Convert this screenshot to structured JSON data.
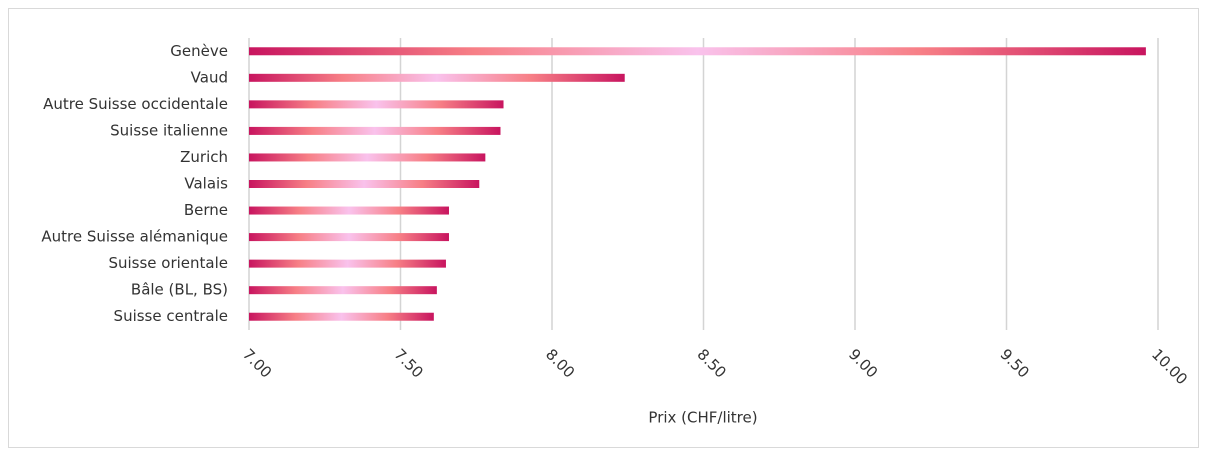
{
  "chart_data": {
    "type": "bar",
    "orientation": "horizontal",
    "categories": [
      "Genève",
      "Vaud",
      "Autre Suisse occidentale",
      "Suisse italienne",
      "Zurich",
      "Valais",
      "Berne",
      "Autre Suisse alémanique",
      "Suisse orientale",
      "Bâle (BL, BS)",
      "Suisse centrale"
    ],
    "values": [
      9.96,
      8.24,
      7.84,
      7.83,
      7.78,
      7.76,
      7.66,
      7.66,
      7.65,
      7.62,
      7.61
    ],
    "colors": [
      "#c8155f",
      "#f77f86",
      "#f9c2ec",
      "#f77f86",
      "#c8155f"
    ],
    "xlabel": "Prix (CHF/litre)",
    "xlim": [
      7,
      10
    ],
    "xticks": [
      {
        "value": 7,
        "label": "7.00"
      },
      {
        "value": 7.5,
        "label": "7.50"
      },
      {
        "value": 8,
        "label": "8.00"
      },
      {
        "value": 8.5,
        "label": "8.50"
      },
      {
        "value": 9,
        "label": "9.00"
      },
      {
        "value": 9.5,
        "label": "9.50"
      },
      {
        "value": 10,
        "label": "10.00"
      }
    ],
    "grid": true
  }
}
